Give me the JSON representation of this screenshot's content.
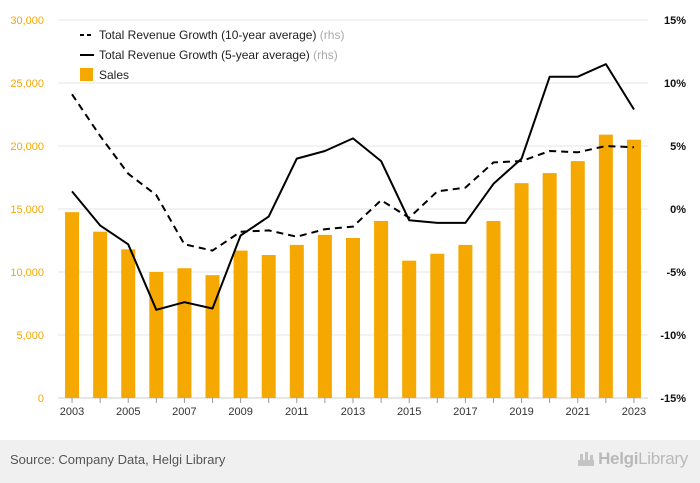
{
  "chart_data": {
    "type": "bar",
    "categories": [
      2003,
      2004,
      2005,
      2006,
      2007,
      2008,
      2009,
      2010,
      2011,
      2012,
      2013,
      2014,
      2015,
      2016,
      2017,
      2018,
      2019,
      2020,
      2021,
      2022,
      2023
    ],
    "x_tick_labels": [
      "2003",
      "2005",
      "2007",
      "2009",
      "2011",
      "2013",
      "2015",
      "2017",
      "2019",
      "2021",
      "2023"
    ],
    "left_axis": {
      "ticks": [
        "0",
        "5,000",
        "10,000",
        "15,000",
        "20,000",
        "25,000",
        "30,000"
      ],
      "ylim": [
        0,
        30000
      ]
    },
    "right_axis": {
      "ticks": [
        "-15%",
        "-10%",
        "-5%",
        "0%",
        "5%",
        "10%",
        "15%"
      ],
      "ylim": [
        -15,
        15
      ]
    },
    "series": [
      {
        "name": "Sales",
        "type": "bar",
        "axis": "left",
        "color": "#f5a800",
        "values": [
          14750,
          13200,
          11800,
          10000,
          10300,
          9750,
          11700,
          11350,
          12150,
          12950,
          12700,
          14050,
          10900,
          11450,
          12150,
          14050,
          17050,
          17850,
          18800,
          20900,
          20500
        ]
      },
      {
        "name": "Total Revenue Growth (10-year average)",
        "axis_note": "(rhs)",
        "type": "line",
        "style": "dashed",
        "axis": "right",
        "color": "#000000",
        "values": [
          9.1,
          5.8,
          2.8,
          1.1,
          -2.8,
          -3.3,
          -1.8,
          -1.7,
          -2.2,
          -1.6,
          -1.4,
          0.7,
          -0.7,
          1.4,
          1.7,
          3.7,
          3.8,
          4.6,
          4.5,
          5.0,
          4.9
        ]
      },
      {
        "name": "Total Revenue Growth (5-year average)",
        "axis_note": "(rhs)",
        "type": "line",
        "style": "solid",
        "axis": "right",
        "color": "#000000",
        "values": [
          1.4,
          -1.3,
          -2.8,
          -8.0,
          -7.4,
          -7.9,
          -2.1,
          -0.6,
          4.0,
          4.6,
          5.6,
          3.8,
          -0.9,
          -1.1,
          -1.1,
          2.0,
          4.0,
          10.5,
          10.5,
          11.5,
          7.9
        ]
      }
    ],
    "legend_position": "top-left",
    "grid": true
  },
  "footer": {
    "source": "Source: Company Data, Helgi Library",
    "logo_bold": "Helgi",
    "logo_light": "Library"
  }
}
